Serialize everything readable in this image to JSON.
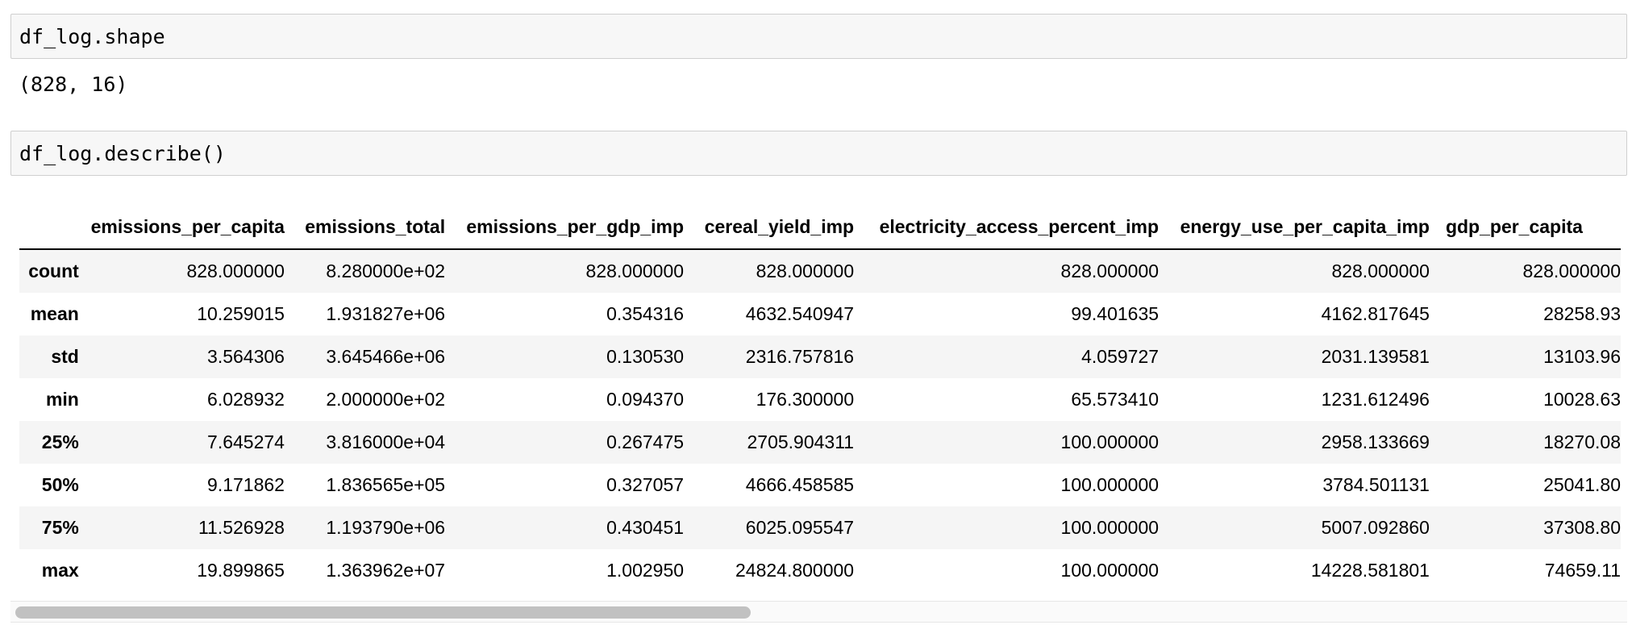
{
  "cells": [
    {
      "code": "df_log.shape",
      "output": "(828, 16)"
    },
    {
      "code": "df_log.describe()"
    }
  ],
  "table": {
    "columns": [
      "",
      "emissions_per_capita",
      "emissions_total",
      "emissions_per_gdp_imp",
      "cereal_yield_imp",
      "electricity_access_percent_imp",
      "energy_use_per_capita_imp",
      "gdp_per_capita"
    ],
    "rows": [
      {
        "label": "count",
        "values": [
          "828.000000",
          "8.280000e+02",
          "828.000000",
          "828.000000",
          "828.000000",
          "828.000000",
          "828.000000"
        ]
      },
      {
        "label": "mean",
        "values": [
          "10.259015",
          "1.931827e+06",
          "0.354316",
          "4632.540947",
          "99.401635",
          "4162.817645",
          "28258.93"
        ]
      },
      {
        "label": "std",
        "values": [
          "3.564306",
          "3.645466e+06",
          "0.130530",
          "2316.757816",
          "4.059727",
          "2031.139581",
          "13103.96"
        ]
      },
      {
        "label": "min",
        "values": [
          "6.028932",
          "2.000000e+02",
          "0.094370",
          "176.300000",
          "65.573410",
          "1231.612496",
          "10028.63"
        ]
      },
      {
        "label": "25%",
        "values": [
          "7.645274",
          "3.816000e+04",
          "0.267475",
          "2705.904311",
          "100.000000",
          "2958.133669",
          "18270.08"
        ]
      },
      {
        "label": "50%",
        "values": [
          "9.171862",
          "1.836565e+05",
          "0.327057",
          "4666.458585",
          "100.000000",
          "3784.501131",
          "25041.80"
        ]
      },
      {
        "label": "75%",
        "values": [
          "11.526928",
          "1.193790e+06",
          "0.430451",
          "6025.095547",
          "100.000000",
          "5007.092860",
          "37308.80"
        ]
      },
      {
        "label": "max",
        "values": [
          "19.899865",
          "1.363962e+07",
          "1.002950",
          "24824.800000",
          "100.000000",
          "14228.581801",
          "74659.11"
        ]
      }
    ]
  },
  "scroll": {
    "position_fraction": 0.46
  }
}
